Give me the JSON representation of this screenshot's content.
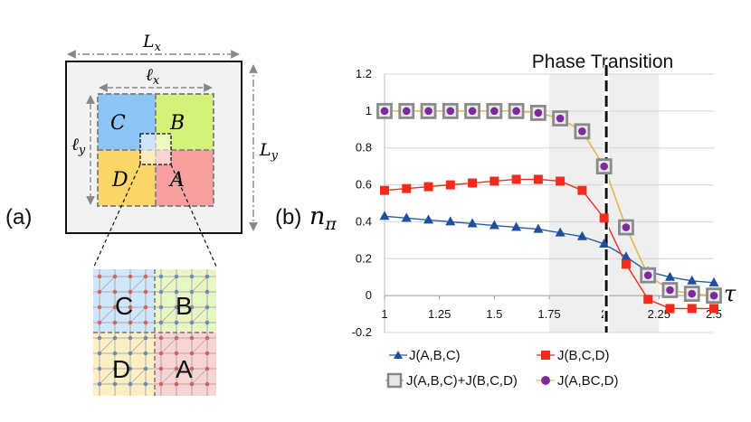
{
  "panel_labels": {
    "a": "(a)",
    "b": "(b)"
  },
  "schematic": {
    "Lx": "L",
    "Lx_sub": "x",
    "Ly": "L",
    "Ly_sub": "y",
    "lx": "ℓ",
    "lx_sub": "x",
    "ly": "ℓ",
    "ly_sub": "y",
    "regions": [
      "C",
      "B",
      "D",
      "A"
    ],
    "lattice_labels": [
      "C",
      "B",
      "D",
      "A"
    ],
    "colors": {
      "C": "#8ec5f7",
      "B": "#d4f27a",
      "D": "#fdd66a",
      "A": "#f7a0a0"
    }
  },
  "chart_data": {
    "type": "line",
    "title": "Phase Transition",
    "ylabel": "n",
    "ylabel_sub": "π",
    "xlabel": "τ",
    "xlim": [
      1,
      2.5
    ],
    "ylim": [
      -0.2,
      1.2
    ],
    "xticks": [
      "1",
      "1.25",
      "1.5",
      "1.75",
      "2",
      "2.25",
      "2.5"
    ],
    "yticks": [
      "1.2",
      "1",
      "0.8",
      "0.6",
      "0.4",
      "0.2",
      "0",
      "-0.2"
    ],
    "transition_x": 2.01,
    "shaded_region": [
      1.75,
      2.25
    ],
    "x": [
      1.0,
      1.1,
      1.2,
      1.3,
      1.4,
      1.5,
      1.6,
      1.7,
      1.8,
      1.9,
      2.0,
      2.1,
      2.2,
      2.3,
      2.4,
      2.5
    ],
    "series": [
      {
        "name": "J(A,B,C)",
        "color": "#2a5fa6",
        "marker": "triangle",
        "values": [
          0.43,
          0.42,
          0.41,
          0.4,
          0.39,
          0.38,
          0.37,
          0.36,
          0.34,
          0.32,
          0.28,
          0.21,
          0.13,
          0.1,
          0.08,
          0.07
        ]
      },
      {
        "name": "J(B,C,D)",
        "color": "#f42a1c",
        "marker": "square",
        "values": [
          0.57,
          0.58,
          0.59,
          0.6,
          0.61,
          0.62,
          0.63,
          0.63,
          0.62,
          0.57,
          0.42,
          0.17,
          -0.02,
          -0.07,
          -0.07,
          -0.07
        ]
      },
      {
        "name": "J(A,B,C)+J(B,C,D)",
        "color": "#999999",
        "marker": "graysquare",
        "values": [
          1.0,
          1.0,
          1.0,
          1.0,
          1.0,
          1.0,
          1.0,
          0.99,
          0.96,
          0.89,
          0.7,
          0.37,
          0.11,
          0.03,
          0.01,
          0.0
        ]
      },
      {
        "name": "J(A,BC,D)",
        "color": "#f0b73c",
        "marker": "circle",
        "values": [
          1.0,
          1.0,
          1.0,
          1.0,
          1.0,
          1.0,
          1.0,
          0.99,
          0.96,
          0.89,
          0.7,
          0.37,
          0.11,
          0.03,
          0.01,
          0.0
        ]
      }
    ]
  }
}
